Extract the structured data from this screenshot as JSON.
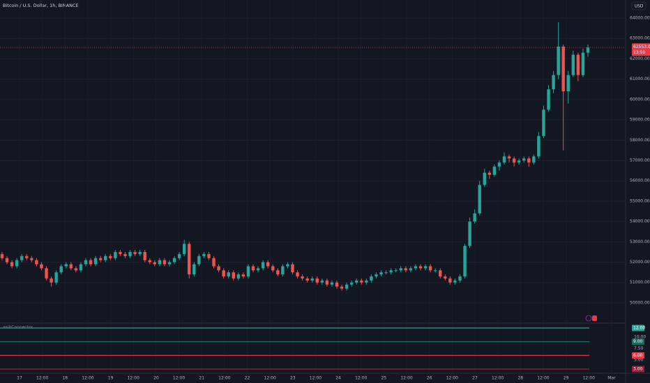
{
  "chart_data": [
    {
      "type": "candlestick",
      "title": "Bitcoin / U.S. Dollar, 1h, BINANCE",
      "currency": "USD",
      "up_color": "#26a69a",
      "down_color": "#ef5350",
      "grid": true,
      "ylim": [
        49040,
        64890
      ],
      "yticks": [
        {
          "value": 64000,
          "label": "64000.00"
        },
        {
          "value": 63000,
          "label": "63000.00"
        },
        {
          "value": 62000,
          "label": "62000.00"
        },
        {
          "value": 61000,
          "label": "61000.00"
        },
        {
          "value": 60000,
          "label": "60000.00"
        },
        {
          "value": 59000,
          "label": "59000.00"
        },
        {
          "value": 58000,
          "label": "58000.00"
        },
        {
          "value": 57000,
          "label": "57000.00"
        },
        {
          "value": 56000,
          "label": "56000.00"
        },
        {
          "value": 55000,
          "label": "55000.00"
        },
        {
          "value": 54000,
          "label": "54000.00"
        },
        {
          "value": 53000,
          "label": "53000.00"
        },
        {
          "value": 52000,
          "label": "52000.00"
        },
        {
          "value": 51000,
          "label": "51000.00"
        },
        {
          "value": 50000,
          "label": "50000.00"
        }
      ],
      "xtick_labels": [
        "17",
        "12:00",
        "18",
        "12:00",
        "19",
        "12:00",
        "20",
        "12:00",
        "21",
        "12:00",
        "22",
        "12:00",
        "23",
        "12:00",
        "24",
        "12:00",
        "25",
        "12:00",
        "26",
        "12:00",
        "27",
        "12:00",
        "28",
        "12:00",
        "29",
        "12:00",
        "Mar"
      ],
      "countdown": "13:50",
      "candles": [
        [
          52400,
          52500,
          52100,
          52200
        ],
        [
          52200,
          52300,
          51900,
          52000
        ],
        [
          52000,
          52100,
          51700,
          51800
        ],
        [
          51800,
          52200,
          51700,
          52100
        ],
        [
          52100,
          52400,
          52000,
          52300
        ],
        [
          52300,
          52400,
          52100,
          52200
        ],
        [
          52200,
          52300,
          52000,
          52100
        ],
        [
          52100,
          52200,
          51800,
          51900
        ],
        [
          51900,
          52000,
          51600,
          51700
        ],
        [
          51700,
          51800,
          51100,
          51200
        ],
        [
          51200,
          51300,
          50800,
          51000
        ],
        [
          51000,
          51600,
          50900,
          51500
        ],
        [
          51500,
          51900,
          51400,
          51800
        ],
        [
          51800,
          52000,
          51700,
          51900
        ],
        [
          51900,
          52000,
          51600,
          51700
        ],
        [
          51700,
          51800,
          51500,
          51600
        ],
        [
          51600,
          52000,
          51500,
          51900
        ],
        [
          51900,
          52200,
          51800,
          52100
        ],
        [
          52100,
          52200,
          51800,
          51900
        ],
        [
          51900,
          52300,
          51800,
          52200
        ],
        [
          52200,
          52300,
          52000,
          52100
        ],
        [
          52100,
          52400,
          52000,
          52300
        ],
        [
          52300,
          52400,
          52100,
          52200
        ],
        [
          52200,
          52600,
          52100,
          52500
        ],
        [
          52500,
          52600,
          52300,
          52400
        ],
        [
          52400,
          52500,
          52200,
          52300
        ],
        [
          52300,
          52600,
          52200,
          52500
        ],
        [
          52500,
          52600,
          52300,
          52400
        ],
        [
          52400,
          52600,
          52300,
          52500
        ],
        [
          52500,
          52600,
          52000,
          52100
        ],
        [
          52100,
          52200,
          51900,
          52000
        ],
        [
          52000,
          52100,
          51800,
          51900
        ],
        [
          51900,
          52200,
          51800,
          52100
        ],
        [
          52100,
          52200,
          51800,
          51900
        ],
        [
          51900,
          52100,
          51800,
          52000
        ],
        [
          52000,
          52300,
          51900,
          52200
        ],
        [
          52200,
          52500,
          52100,
          52400
        ],
        [
          52400,
          53100,
          52300,
          52900
        ],
        [
          52900,
          53000,
          51200,
          51400
        ],
        [
          51400,
          52000,
          51300,
          51900
        ],
        [
          51900,
          52400,
          51800,
          52300
        ],
        [
          52300,
          52500,
          52200,
          52400
        ],
        [
          52400,
          52500,
          52100,
          52200
        ],
        [
          52200,
          52300,
          51700,
          51800
        ],
        [
          51800,
          51900,
          51500,
          51600
        ],
        [
          51600,
          51700,
          51200,
          51300
        ],
        [
          51300,
          51600,
          51200,
          51500
        ],
        [
          51500,
          51600,
          51100,
          51200
        ],
        [
          51200,
          51500,
          51100,
          51400
        ],
        [
          51400,
          51500,
          51200,
          51300
        ],
        [
          51300,
          51900,
          51200,
          51800
        ],
        [
          51800,
          51900,
          51500,
          51600
        ],
        [
          51600,
          51800,
          51500,
          51700
        ],
        [
          51700,
          52100,
          51600,
          52000
        ],
        [
          52000,
          52100,
          51700,
          51800
        ],
        [
          51800,
          51900,
          51500,
          51600
        ],
        [
          51600,
          51700,
          51300,
          51400
        ],
        [
          51400,
          51900,
          51300,
          51800
        ],
        [
          51800,
          52000,
          51700,
          51900
        ],
        [
          51900,
          52000,
          51400,
          51500
        ],
        [
          51500,
          51600,
          51200,
          51300
        ],
        [
          51300,
          51400,
          51100,
          51200
        ],
        [
          51200,
          51300,
          51000,
          51100
        ],
        [
          51100,
          51300,
          51000,
          51200
        ],
        [
          51200,
          51300,
          50900,
          51000
        ],
        [
          51000,
          51200,
          50900,
          51100
        ],
        [
          51100,
          51200,
          50800,
          50900
        ],
        [
          50900,
          51100,
          50800,
          51000
        ],
        [
          51000,
          51100,
          50700,
          50800
        ],
        [
          50800,
          50900,
          50600,
          50700
        ],
        [
          50700,
          51000,
          50600,
          50900
        ],
        [
          50900,
          51100,
          50800,
          51000
        ],
        [
          51000,
          51200,
          50900,
          51100
        ],
        [
          51100,
          51200,
          50900,
          51000
        ],
        [
          51000,
          51200,
          50900,
          51100
        ],
        [
          51100,
          51400,
          51000,
          51300
        ],
        [
          51300,
          51500,
          51200,
          51400
        ],
        [
          51400,
          51600,
          51300,
          51500
        ],
        [
          51500,
          51600,
          51400,
          51500
        ],
        [
          51500,
          51700,
          51400,
          51600
        ],
        [
          51600,
          51700,
          51500,
          51600
        ],
        [
          51600,
          51800,
          51500,
          51700
        ],
        [
          51700,
          51800,
          51500,
          51600
        ],
        [
          51600,
          51800,
          51500,
          51700
        ],
        [
          51700,
          51900,
          51600,
          51800
        ],
        [
          51800,
          51900,
          51600,
          51700
        ],
        [
          51700,
          51900,
          51600,
          51800
        ],
        [
          51800,
          51900,
          51500,
          51600
        ],
        [
          51600,
          51700,
          51500,
          51600
        ],
        [
          51600,
          51700,
          51200,
          51300
        ],
        [
          51300,
          51400,
          51100,
          51200
        ],
        [
          51200,
          51300,
          50900,
          51000
        ],
        [
          51000,
          51200,
          50900,
          51100
        ],
        [
          51100,
          51400,
          51000,
          51300
        ],
        [
          51300,
          52900,
          51200,
          52800
        ],
        [
          52800,
          54200,
          52700,
          54000
        ],
        [
          54000,
          54600,
          53900,
          54400
        ],
        [
          54400,
          56000,
          54300,
          55800
        ],
        [
          55800,
          56600,
          55700,
          56400
        ],
        [
          56400,
          56500,
          56100,
          56300
        ],
        [
          56300,
          56800,
          56200,
          56700
        ],
        [
          56700,
          57000,
          56500,
          56900
        ],
        [
          56900,
          57400,
          56800,
          57200
        ],
        [
          57200,
          57300,
          56900,
          57100
        ],
        [
          57100,
          57200,
          56700,
          56900
        ],
        [
          56900,
          57100,
          56800,
          57000
        ],
        [
          57000,
          57200,
          56900,
          57100
        ],
        [
          57100,
          57200,
          56700,
          56900
        ],
        [
          56900,
          57300,
          56800,
          57200
        ],
        [
          57200,
          58400,
          57100,
          58200
        ],
        [
          58200,
          59700,
          58100,
          59500
        ],
        [
          59500,
          60700,
          59400,
          60500
        ],
        [
          60500,
          61400,
          60300,
          61200
        ],
        [
          61200,
          63800,
          61000,
          62600
        ],
        [
          62600,
          62700,
          57500,
          60400
        ],
        [
          60400,
          61400,
          59800,
          61200
        ],
        [
          61200,
          62400,
          61100,
          62200
        ],
        [
          62200,
          62300,
          60900,
          61200
        ],
        [
          61200,
          62500,
          61100,
          62300
        ],
        [
          62300,
          62700,
          62100,
          62553.09
        ]
      ]
    },
    {
      "type": "hline",
      "title": "asibConnector",
      "ylim": [
        2.24,
        12.91
      ],
      "yticks": [
        {
          "value": 10,
          "label": "10.00"
        },
        {
          "value": 7.5,
          "label": "7.50"
        },
        {
          "value": 5,
          "label": "5.00"
        }
      ],
      "series": [
        {
          "color": "#26a69a",
          "values": [
            12
          ],
          "value_labels": [
            "12.00"
          ]
        },
        {
          "color": "#1b6b63",
          "values": [
            9
          ],
          "value_labels": [
            "9.00"
          ]
        },
        {
          "color": "#f23645",
          "values": [
            6
          ],
          "value_labels": [
            "6.00"
          ]
        },
        {
          "color": "#9c1e3a",
          "values": [
            3
          ],
          "value_labels": [
            "3.00"
          ]
        }
      ]
    }
  ]
}
